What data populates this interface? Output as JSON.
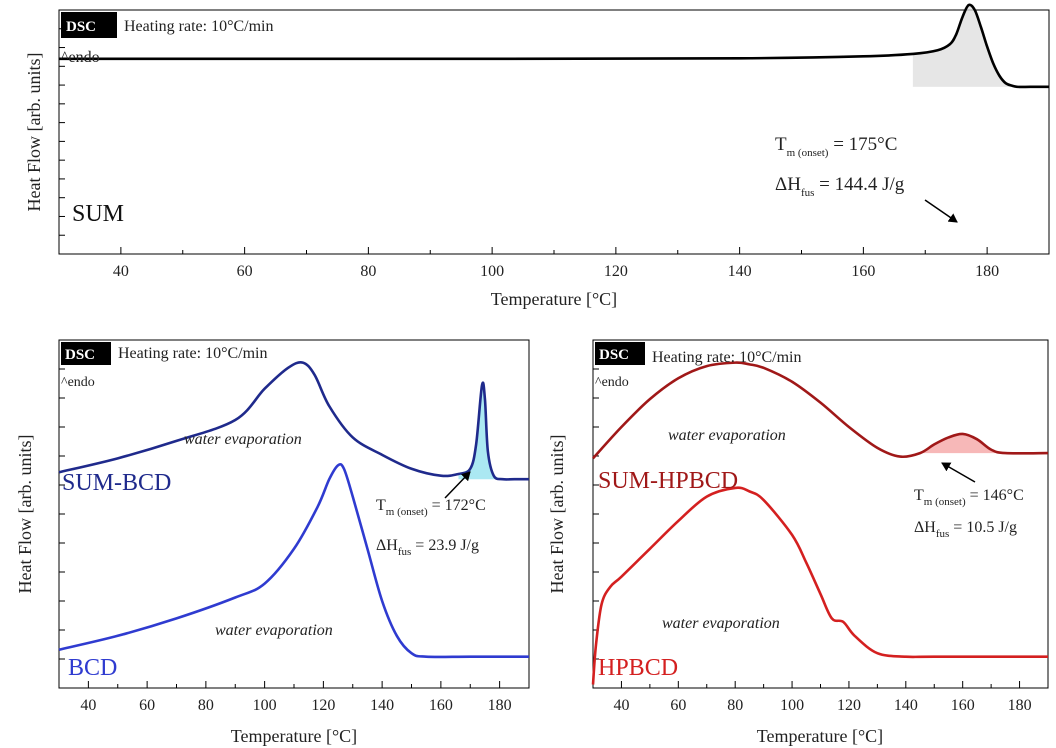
{
  "chart_data": [
    {
      "id": "top",
      "type": "line",
      "title": "",
      "xlabel": "Temperature [°C]",
      "ylabel": "Heat Flow [arb. units]",
      "xlim": [
        30,
        190
      ],
      "xticks": [
        40,
        60,
        80,
        100,
        120,
        140,
        160,
        180
      ],
      "badge": "DSC",
      "heating_rate": "Heating rate: 10°C/min",
      "endo": "^endo",
      "series": [
        {
          "name": "SUM",
          "color": "#000000",
          "fill_color": "#dddddd",
          "x": [
            30,
            60,
            100,
            140,
            160,
            168,
            172,
            174,
            175,
            176,
            177,
            178,
            179,
            180,
            181,
            182,
            183,
            184,
            185,
            187,
            190
          ],
          "y": [
            0.8,
            0.8,
            0.8,
            0.802,
            0.81,
            0.82,
            0.835,
            0.86,
            0.9,
            0.97,
            1.02,
            1.0,
            0.93,
            0.85,
            0.78,
            0.73,
            0.7,
            0.69,
            0.685,
            0.685,
            0.685
          ]
        }
      ],
      "annotations": {
        "tm_main": "T",
        "tm_sub": "m (onset)",
        "tm_value": " = 175°C",
        "dh_main": "ΔH",
        "dh_sub": "fus",
        "dh_value": " = 144.4 J/g",
        "series_label": "SUM"
      }
    },
    {
      "id": "bottom-left",
      "type": "line",
      "title": "",
      "xlabel": "Temperature [°C]",
      "ylabel": "Heat Flow [arb. units]",
      "xlim": [
        30,
        190
      ],
      "xticks": [
        40,
        60,
        80,
        100,
        120,
        140,
        160,
        180
      ],
      "badge": "DSC",
      "heating_rate": "Heating rate: 10°C/min",
      "endo": "^endo",
      "series": [
        {
          "name": "SUM-BCD",
          "color": "#1f2a8c",
          "x": [
            30,
            50,
            70,
            90,
            100,
            108,
            113,
            117,
            122,
            130,
            140,
            150,
            160,
            166,
            170,
            172,
            174,
            175,
            176,
            178,
            181,
            185,
            190
          ],
          "y": [
            0.62,
            0.66,
            0.71,
            0.77,
            0.86,
            0.92,
            0.935,
            0.9,
            0.81,
            0.72,
            0.67,
            0.63,
            0.61,
            0.615,
            0.63,
            0.7,
            0.87,
            0.83,
            0.68,
            0.61,
            0.6,
            0.6,
            0.6
          ]
        },
        {
          "name": "BCD",
          "color": "#2f3bd0",
          "x": [
            30,
            50,
            70,
            90,
            100,
            110,
            118,
            122,
            125,
            127,
            130,
            135,
            140,
            145,
            150,
            155,
            170,
            190
          ],
          "y": [
            0.11,
            0.15,
            0.2,
            0.26,
            0.3,
            0.4,
            0.52,
            0.6,
            0.64,
            0.63,
            0.55,
            0.4,
            0.25,
            0.15,
            0.1,
            0.09,
            0.09,
            0.09
          ]
        }
      ],
      "annotations": {
        "water_1": "water evaporation",
        "water_2": "water evaporation",
        "tm_main": "T",
        "tm_sub": "m (onset)",
        "tm_value": " = 172°C",
        "dh_main": "ΔH",
        "dh_sub": "fus",
        "dh_value": " = 23.9 J/g",
        "label_1": "SUM-BCD",
        "label_2": "BCD"
      }
    },
    {
      "id": "bottom-right",
      "type": "line",
      "title": "",
      "xlabel": "Temperature [°C]",
      "ylabel": "Heat Flow [arb. units]",
      "xlim": [
        30,
        190
      ],
      "xticks": [
        40,
        60,
        80,
        100,
        120,
        140,
        160,
        180
      ],
      "badge": "DSC",
      "heating_rate": "Heating rate: 10°C/min",
      "endo": "^endo",
      "series": [
        {
          "name": "SUM-HPBCD",
          "color": "#a01818",
          "x": [
            30,
            40,
            50,
            60,
            70,
            80,
            85,
            90,
            100,
            110,
            120,
            130,
            138,
            145,
            150,
            155,
            160,
            165,
            170,
            175,
            190
          ],
          "y": [
            0.66,
            0.75,
            0.83,
            0.89,
            0.925,
            0.935,
            0.93,
            0.92,
            0.88,
            0.82,
            0.75,
            0.69,
            0.665,
            0.675,
            0.7,
            0.72,
            0.73,
            0.715,
            0.685,
            0.675,
            0.675
          ]
        },
        {
          "name": "HPBCD",
          "color": "#d42020",
          "x": [
            30,
            31,
            33,
            36,
            40,
            50,
            60,
            70,
            80,
            85,
            90,
            100,
            105,
            110,
            114,
            118,
            122,
            130,
            140,
            150,
            190
          ],
          "y": [
            0.01,
            0.12,
            0.24,
            0.29,
            0.32,
            0.4,
            0.48,
            0.55,
            0.575,
            0.565,
            0.54,
            0.44,
            0.36,
            0.27,
            0.2,
            0.19,
            0.15,
            0.1,
            0.09,
            0.09,
            0.09
          ]
        }
      ],
      "annotations": {
        "water_1": "water evaporation",
        "water_2": "water evaporation",
        "tm_main": "T",
        "tm_sub": "m (onset)",
        "tm_value": " = 146°C",
        "dh_main": "ΔH",
        "dh_sub": "fus",
        "dh_value": " = 10.5 J/g",
        "label_1": "SUM-HPBCD",
        "label_2": "HPBCD"
      }
    }
  ]
}
